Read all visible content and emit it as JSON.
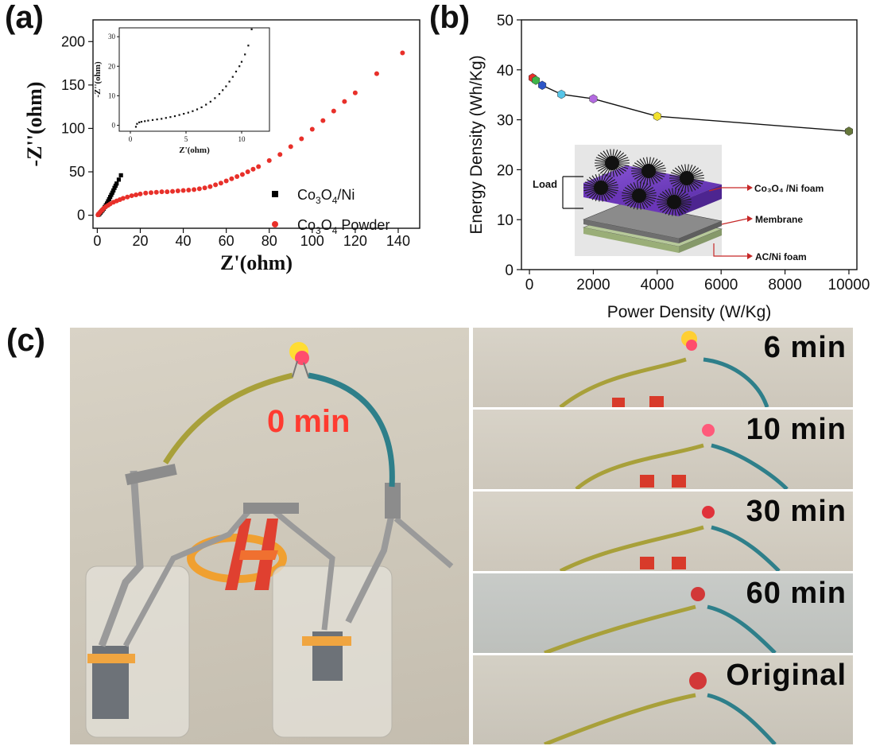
{
  "panel_labels": {
    "a": "(a)",
    "b": "(b)",
    "c": "(c)"
  },
  "chart_data": [
    {
      "type": "scatter",
      "id": "nyquist",
      "xlabel": "Z'(ohm)",
      "ylabel": "-Z''(ohm)",
      "xlim": [
        -2,
        150
      ],
      "ylim": [
        -15,
        225
      ],
      "xticks": [
        0,
        20,
        40,
        60,
        80,
        100,
        120,
        140
      ],
      "yticks": [
        0,
        50,
        100,
        150,
        200
      ],
      "legend": "center-right",
      "series": [
        {
          "name": "Co3O4/Ni",
          "name_display": {
            "base": "Co",
            "sub1": "3",
            "mid": "O",
            "sub2": "4",
            "tail": "/Ni"
          },
          "marker": "square",
          "color": "#000000",
          "x": [
            0.5,
            1.0,
            1.5,
            2.0,
            2.5,
            3.0,
            3.5,
            4.0,
            4.5,
            5.0,
            5.5,
            6.0,
            6.5,
            7.0,
            7.5,
            8.0,
            8.5,
            9.0,
            10.0,
            11.0
          ],
          "y": [
            0.5,
            1.5,
            3.0,
            4.5,
            6.0,
            7.5,
            9.5,
            11.5,
            13.5,
            16.0,
            18.5,
            21.0,
            23.5,
            26.0,
            28.5,
            31.5,
            34.0,
            36.5,
            41.0,
            46.0
          ]
        },
        {
          "name": "Co3O4 Powder",
          "name_display": {
            "base": "Co",
            "sub1": "3",
            "mid": "O",
            "sub2": "4",
            "tail": " Powder"
          },
          "marker": "circle",
          "color": "#e8302a",
          "x": [
            0.3,
            0.6,
            1.0,
            1.5,
            2.0,
            2.5,
            3.0,
            4.0,
            5.0,
            6.0,
            7.5,
            9.0,
            10.5,
            12.0,
            14.0,
            16.0,
            18.0,
            20.0,
            22.5,
            25.0,
            27.5,
            30.0,
            32.5,
            35.0,
            37.5,
            40.0,
            42.5,
            45.0,
            47.5,
            50.0,
            52.5,
            55.0,
            57.5,
            60.0,
            62.5,
            65.0,
            67.5,
            70.0,
            72.5,
            75.0,
            80.0,
            85.0,
            90.0,
            95.0,
            100.0,
            105.0,
            110.0,
            115.0,
            120.0,
            130.0,
            142.0
          ],
          "y": [
            0.5,
            1.5,
            2.5,
            4.0,
            5.5,
            6.5,
            8.0,
            10.0,
            11.5,
            13.0,
            15.0,
            16.5,
            18.0,
            19.5,
            21.0,
            22.5,
            23.5,
            24.5,
            25.5,
            26.0,
            26.5,
            27.0,
            27.0,
            27.5,
            28.0,
            28.5,
            29.0,
            29.5,
            30.5,
            31.5,
            33.0,
            35.0,
            37.0,
            39.5,
            42.0,
            44.5,
            47.0,
            50.0,
            53.0,
            56.0,
            63.0,
            70.0,
            79.0,
            88.0,
            99.0,
            109.0,
            120.0,
            131.0,
            141.0,
            163.0,
            187.0
          ]
        }
      ]
    },
    {
      "type": "scatter",
      "id": "nyquist-inset",
      "xlabel": "Z'(ohm)",
      "ylabel": "-Z''(ohm)",
      "xlim": [
        -1,
        12.5
      ],
      "ylim": [
        -2,
        33
      ],
      "xticks": [
        0,
        5,
        10
      ],
      "yticks": [
        0,
        10,
        20,
        30
      ],
      "x": [
        0.5,
        0.6,
        0.8,
        1.0,
        1.3,
        1.6,
        2.0,
        2.4,
        2.8,
        3.2,
        3.6,
        4.0,
        4.4,
        4.8,
        5.2,
        5.6,
        6.0,
        6.4,
        6.8,
        7.2,
        7.6,
        8.0,
        8.3,
        8.6,
        8.9,
        9.2,
        9.5,
        9.8,
        10.0,
        10.3,
        10.6,
        10.9
      ],
      "y": [
        -0.5,
        0.5,
        1.0,
        1.2,
        1.4,
        1.6,
        1.8,
        2.0,
        2.2,
        2.5,
        2.8,
        3.1,
        3.5,
        3.9,
        4.3,
        4.8,
        5.4,
        6.1,
        7.0,
        8.0,
        9.2,
        10.6,
        11.9,
        13.2,
        14.8,
        16.4,
        18.2,
        20.0,
        21.5,
        24.0,
        27.0,
        32.5
      ]
    },
    {
      "type": "line",
      "id": "ragone",
      "xlabel": "Power Density (W/Kg)",
      "ylabel": "Energy Density (Wh/Kg)",
      "xlim": [
        -250,
        10250
      ],
      "ylim": [
        0,
        50
      ],
      "xticks": [
        0,
        2000,
        4000,
        6000,
        8000,
        10000
      ],
      "yticks": [
        0,
        10,
        20,
        30,
        40,
        50
      ],
      "x": [
        100,
        200,
        400,
        1000,
        2000,
        4000,
        10000
      ],
      "y": [
        38.4,
        37.9,
        36.9,
        35.1,
        34.2,
        30.7,
        27.7
      ],
      "marker": "hexagon",
      "marker_colors": [
        "#e8302a",
        "#3fb549",
        "#2d55c6",
        "#56c5e8",
        "#b36ae0",
        "#f2e12e",
        "#66773a"
      ],
      "schematic_labels": {
        "load": "Load",
        "co3o4": "Co₃O₄ /Ni foam",
        "membrane": "Membrane",
        "ac": "AC/Ni foam"
      }
    }
  ],
  "photo_labels": {
    "main": "0 min",
    "strips": [
      "6  min",
      "10  min",
      "30  min",
      "60  min",
      "Original"
    ]
  },
  "colors": {
    "red_series": "#e8302a",
    "led_on": "#ffdd33",
    "label_red": "#ff3b30"
  }
}
